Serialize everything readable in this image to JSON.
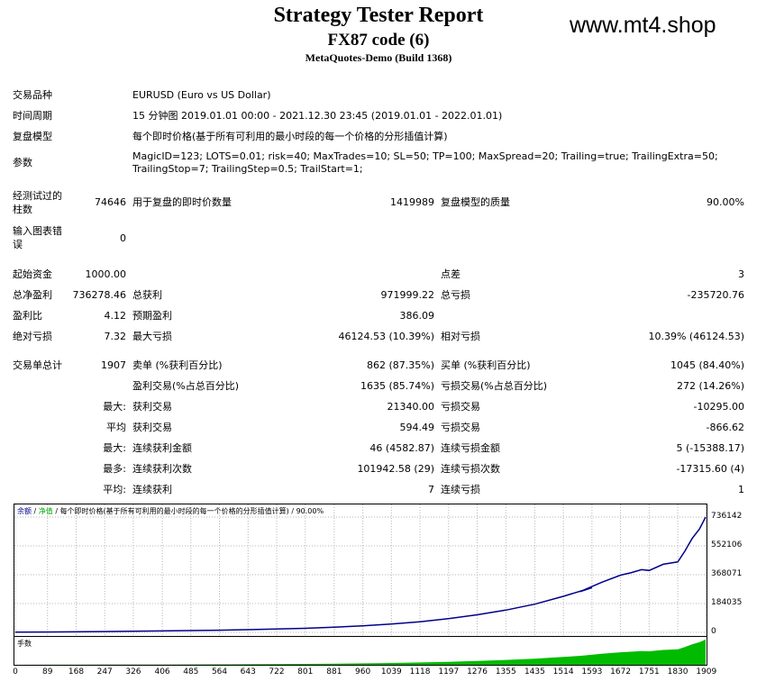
{
  "header": {
    "title": "Strategy Tester Report",
    "subtitle": "FX87 code (6)",
    "build": "MetaQuotes-Demo (Build 1368)",
    "watermark": "www.mt4.shop"
  },
  "info": {
    "symbol_label": "交易品种",
    "symbol_value": "EURUSD (Euro vs US Dollar)",
    "period_label": "时间周期",
    "period_value": "15 分钟图 2019.01.01 00:00 - 2021.12.30 23:45 (2019.01.01 - 2022.01.01)",
    "model_label": "复盘模型",
    "model_value": "每个即时价格(基于所有可利用的最小时段的每一个价格的分形插值计算)",
    "params_label": "参数",
    "params_line1": "MagicID=123; LOTS=0.01; risk=40; MaxTrades=10; SL=50; TP=100; MaxSpread=20; Trailing=true; TrailingExtra=50;",
    "params_line2": "TrailingStop=7; TrailingStep=0.5; TrailStart=1;"
  },
  "bars": {
    "tested_label_1": "经测试过的",
    "tested_label_2": "柱数",
    "tested_value": "74646",
    "ticks_label": "用于复盘的即时价数量",
    "ticks_value": "1419989",
    "quality_label": "复盘模型的质量",
    "quality_value": "90.00%",
    "errors_label_1": "输入图表错",
    "errors_label_2": "误",
    "errors_value": "0"
  },
  "stats": {
    "deposit_label": "起始资金",
    "deposit_value": "1000.00",
    "spread_label": "点差",
    "spread_value": "3",
    "net_label": "总净盈利",
    "net_value": "736278.46",
    "gross_profit_label": "总获利",
    "gross_profit_value": "971999.22",
    "gross_loss_label": "总亏损",
    "gross_loss_value": "-235720.76",
    "pf_label": "盈利比",
    "pf_value": "4.12",
    "payoff_label": "预期盈利",
    "payoff_value": "386.09",
    "abs_dd_label": "绝对亏损",
    "abs_dd_value": "7.32",
    "max_dd_label": "最大亏损",
    "max_dd_value": "46124.53 (10.39%)",
    "rel_dd_label": "相对亏损",
    "rel_dd_value": "10.39% (46124.53)",
    "total_trades_label": "交易单总计",
    "total_trades_value": "1907",
    "short_label": "卖单 (%获利百分比)",
    "short_value": "862 (87.35%)",
    "long_label": "买单 (%获利百分比)",
    "long_value": "1045 (84.40%)",
    "profit_trades_label": "盈利交易(%占总百分比)",
    "profit_trades_value": "1635 (85.74%)",
    "loss_trades_label": "亏损交易(%占总百分比)",
    "loss_trades_value": "272 (14.26%)",
    "largest_prefix": "最大:",
    "largest_profit_label": "获利交易",
    "largest_profit_value": "21340.00",
    "largest_loss_label": "亏损交易",
    "largest_loss_value": "-10295.00",
    "average_prefix": "平均",
    "avg_profit_label": "获利交易",
    "avg_profit_value": "594.49",
    "avg_loss_label": "亏损交易",
    "avg_loss_value": "-866.62",
    "max_prefix": "最大:",
    "max_cons_wins_label": "连续获利金额",
    "max_cons_wins_value": "46 (4582.87)",
    "max_cons_losses_label": "连续亏损金额",
    "max_cons_losses_value": "5 (-15388.17)",
    "most_prefix": "最多:",
    "most_cons_profit_label": "连续获利次数",
    "most_cons_profit_value": "101942.58 (29)",
    "most_cons_loss_label": "连续亏损次数",
    "most_cons_loss_value": "-17315.60 (4)",
    "avg2_prefix": "平均:",
    "avg_cons_wins_label": "连续获利",
    "avg_cons_wins_value": "7",
    "avg_cons_losses_label": "连续亏损",
    "avg_cons_losses_value": "1"
  },
  "chart_data": {
    "type": "line",
    "title_balance": "余额",
    "title_sep": " / ",
    "title_equity": "净值",
    "title_rest": " / 每个即时价格(基于所有可利用的最小时段的每一个价格的分形插值计算) / 90.00%",
    "volume_title": "手数",
    "ylim": [
      0,
      736142
    ],
    "y_ticks": [
      "736142",
      "552106",
      "368071",
      "184035",
      "0"
    ],
    "x_ticks": [
      "0",
      "89",
      "168",
      "247",
      "326",
      "406",
      "485",
      "564",
      "643",
      "722",
      "801",
      "881",
      "960",
      "1039",
      "1118",
      "1197",
      "1276",
      "1355",
      "1435",
      "1514",
      "1593",
      "1672",
      "1751",
      "1830",
      "1909"
    ],
    "xlim": [
      0,
      1907
    ],
    "series": [
      {
        "x": [
          0,
          89,
          168,
          247,
          326,
          406,
          485,
          564,
          643,
          722,
          801,
          881,
          960,
          1039,
          1118,
          1197,
          1276,
          1355,
          1435,
          1514,
          1593,
          1560,
          1620,
          1672,
          1700,
          1730,
          1751,
          1790,
          1830,
          1850,
          1870,
          1890,
          1907
        ],
        "y": [
          1000,
          2200,
          3500,
          5200,
          7000,
          9000,
          11500,
          14000,
          17000,
          21000,
          26000,
          33000,
          42000,
          53000,
          68000,
          88000,
          112000,
          142000,
          180000,
          230000,
          285000,
          260000,
          320000,
          365000,
          380000,
          400000,
          395000,
          435000,
          450000,
          520000,
          600000,
          660000,
          736142
        ]
      }
    ],
    "colors": {
      "balance": "#00008b",
      "equity": "#00aa00",
      "volume": "#00bb00",
      "grid": "#b4b4b4"
    }
  }
}
